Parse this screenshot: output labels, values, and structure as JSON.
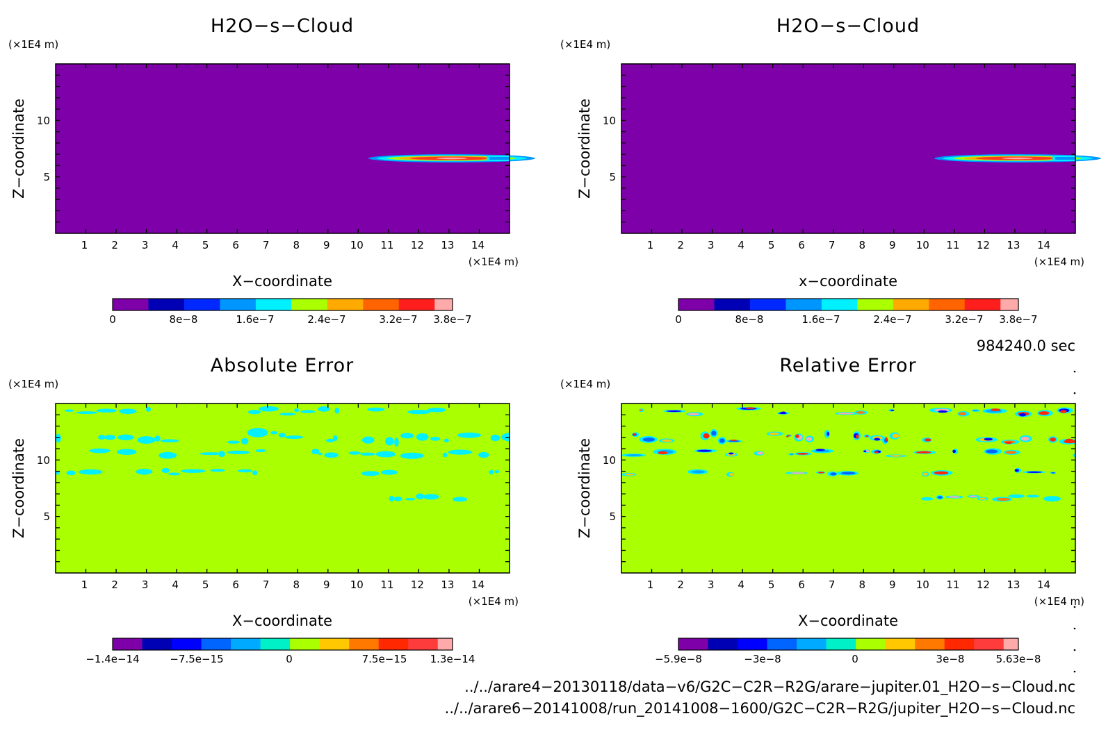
{
  "panels": [
    {
      "title": "H2O−s−Cloud",
      "z_unit": "(×1E4 m)",
      "x_unit": "(×1E4 m)",
      "xlabel": "X−coordinate",
      "ylabel": "Z−coordinate",
      "x_ticks": [
        "1",
        "2",
        "3",
        "4",
        "5",
        "6",
        "7",
        "8",
        "9",
        "10",
        "11",
        "12",
        "13",
        "14"
      ],
      "y_ticks": [
        "5",
        "10"
      ],
      "colorbar_ticks": [
        "0",
        "8e−8",
        "1.6e−7",
        "2.4e−7",
        "3.2e−7",
        "3.8e−7"
      ],
      "colorbar_colors": [
        "#7d00a8",
        "#0000b4",
        "#0028ff",
        "#0096ff",
        "#00f0ff",
        "#aaff00",
        "#ffaa00",
        "#ff6400",
        "#ff1e1e",
        "#ffaaaa"
      ]
    },
    {
      "title": "H2O−s−Cloud",
      "z_unit": "(×1E4 m)",
      "x_unit": "(×1E4 m)",
      "xlabel": "x−coordinate",
      "ylabel": "Z−coordinate",
      "x_ticks": [
        "1",
        "2",
        "3",
        "4",
        "5",
        "6",
        "7",
        "8",
        "9",
        "10",
        "11",
        "12",
        "13",
        "14"
      ],
      "y_ticks": [
        "5",
        "10"
      ],
      "colorbar_ticks": [
        "0",
        "8e−8",
        "1.6e−7",
        "2.4e−7",
        "3.2e−7",
        "3.8e−7"
      ],
      "colorbar_colors": [
        "#7d00a8",
        "#0000b4",
        "#0028ff",
        "#0096ff",
        "#00f0ff",
        "#aaff00",
        "#ffaa00",
        "#ff6400",
        "#ff1e1e",
        "#ffaaaa"
      ]
    },
    {
      "title": "Absolute Error",
      "z_unit": "(×1E4 m)",
      "x_unit": "(×1E4 m)",
      "xlabel": "X−coordinate",
      "ylabel": "Z−coordinate",
      "x_ticks": [
        "1",
        "2",
        "3",
        "4",
        "5",
        "6",
        "7",
        "8",
        "9",
        "10",
        "11",
        "12",
        "13",
        "14"
      ],
      "y_ticks": [
        "5",
        "10"
      ],
      "colorbar_ticks": [
        "−1.4e−14",
        "−7.5e−15",
        "0",
        "7.5e−15",
        "1.3e−14"
      ],
      "colorbar_colors": [
        "#7d00a8",
        "#0000b4",
        "#0000ff",
        "#0064ff",
        "#00aaff",
        "#00f0c8",
        "#aaff00",
        "#ffc800",
        "#ff7800",
        "#ff2800",
        "#ff3c3c",
        "#ffaaaa"
      ]
    },
    {
      "title": "Relative Error",
      "z_unit": "(×1E4 m)",
      "x_unit": "(×1E4 m)",
      "xlabel": "X−coordinate",
      "ylabel": "Z−coordinate",
      "x_ticks": [
        "1",
        "2",
        "3",
        "4",
        "5",
        "6",
        "7",
        "8",
        "9",
        "10",
        "11",
        "12",
        "13",
        "14"
      ],
      "y_ticks": [
        "5",
        "10"
      ],
      "colorbar_ticks": [
        "−5.9e−8",
        "−3e−8",
        "0",
        "3e−8",
        "5.63e−8"
      ],
      "colorbar_colors": [
        "#7d00a8",
        "#0000b4",
        "#0000ff",
        "#0064ff",
        "#00aaff",
        "#00f0c8",
        "#aaff00",
        "#ffc800",
        "#ff7800",
        "#ff2800",
        "#ff3c3c",
        "#ffaaaa"
      ]
    }
  ],
  "time_label": "984240.0 sec",
  "file_paths": [
    "../../arare4−20130118/data−v6/G2C−C2R−R2G/arare−jupiter.01_H2O−s−Cloud.nc",
    "../../arare6−20141008/run_20141008−1600/G2C−C2R−R2G/jupiter_H2O−s−Cloud.nc"
  ],
  "chart_data": [
    {
      "type": "heatmap",
      "title": "H2O−s−Cloud",
      "xlabel": "X−coordinate",
      "ylabel": "Z−coordinate",
      "xlim": [
        0,
        15
      ],
      "ylim": [
        0,
        15
      ],
      "background_value": 0,
      "features": [
        {
          "description": "thin cloud layer",
          "z": 6.6,
          "x_range": [
            10.5,
            15
          ],
          "peak_value": 3.8e-07
        }
      ],
      "colorbar": {
        "min": 0,
        "max": 3.8e-07
      }
    },
    {
      "type": "heatmap",
      "title": "H2O−s−Cloud",
      "xlabel": "x−coordinate",
      "ylabel": "Z−coordinate",
      "xlim": [
        0,
        15
      ],
      "ylim": [
        0,
        15
      ],
      "background_value": 0,
      "features": [
        {
          "description": "thin cloud layer",
          "z": 6.6,
          "x_range": [
            10.5,
            15
          ],
          "peak_value": 3.8e-07
        }
      ],
      "colorbar": {
        "min": 0,
        "max": 3.8e-07
      }
    },
    {
      "type": "heatmap",
      "title": "Absolute Error",
      "xlabel": "X−coordinate",
      "ylabel": "Z−coordinate",
      "xlim": [
        0,
        15
      ],
      "ylim": [
        0,
        15
      ],
      "background_value": 0,
      "noise_bands_z": [
        14.3,
        12.0,
        10.6,
        8.9,
        6.7
      ],
      "colorbar": {
        "min": -1.4e-14,
        "max": 1.3e-14
      }
    },
    {
      "type": "heatmap",
      "title": "Relative Error",
      "xlabel": "X−coordinate",
      "ylabel": "Z−coordinate",
      "xlim": [
        0,
        15
      ],
      "ylim": [
        0,
        15
      ],
      "background_value": 0,
      "noise_bands_z": [
        14.3,
        12.0,
        10.6,
        8.9,
        6.7
      ],
      "colorbar": {
        "min": -5.9e-08,
        "max": 5.63e-08
      }
    }
  ]
}
